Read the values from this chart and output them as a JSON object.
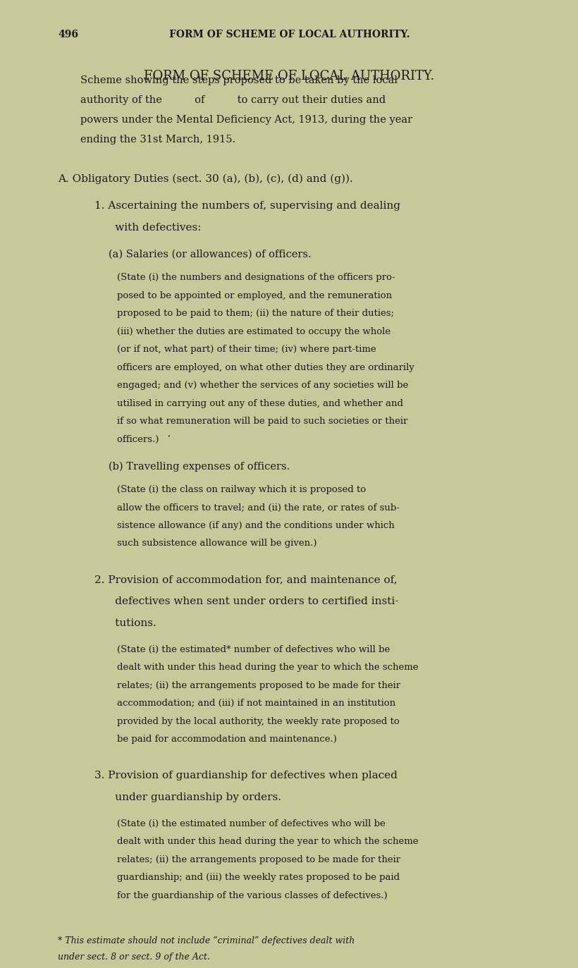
{
  "bg_color": "#c8c89a",
  "text_color": "#1a1a1a",
  "page_number": "496",
  "header": "FORM OF SCHEME OF LOCAL AUTHORITY.",
  "title": "FORM OF SCHEME OF LOCAL AUTHORITY.",
  "intro": "Scheme showing the steps proposed to be taken by the local\nauthority of the          of          to carry out their duties and\npowers under the Mental Deficiency Act, 1913, during the year\nending the 31st March, 1915.",
  "section_A": "A. Obligatory Duties (sect. 30 (a), (b), (c), (d) and (g)).",
  "item_1_heading": "1. Ascertaining the numbers of, supervising and dealing\n      with defectives:",
  "item_1a_heading": "(a) Salaries (or allowances) of officers.",
  "item_1a_body": "(State (i) the numbers and designations of the officers pro-\nposed to be appointed or employed, and the remuneration\nproposed to be paid to them; (ii) the nature of their duties;\n(iii) whether the duties are estimated to occupy the whole\n(or if not, what part) of their time; (iv) where part-time\nofficers are employed, on what other duties they are ordinarily\nengaged; and (v) whether the services of any societies will be\nutilised in carrying out any of these duties, and whether and\nif so what remuneration will be paid to such societies or their\nofficers.)   ʹ",
  "item_1b_heading": "(b) Travelling expenses of officers.",
  "item_1b_body": "(State (i) the class on railway which it is proposed to\nallow the officers to travel; and (ii) the rate, or rates of sub-\nsistence allowance (if any) and the conditions under which\nsuch subsistence allowance will be given.)",
  "item_2_heading": "2. Provision of accommodation for, and maintenance of,\n      defectives when sent under orders to certified insti-\n      tutions.",
  "item_2_body": "(State (i) the estimated* number of defectives who will be\ndealt with under this head during the year to which the scheme\nrelates; (ii) the arrangements proposed to be made for their\naccommodation; and (iii) if not maintained in an institution\nprovided by the local authority, the weekly rate proposed to\nbe paid for accommodation and maintenance.)",
  "item_3_heading": "3. Provision of guardianship for defectives when placed\n      under guardianship by orders.",
  "item_3_body": "(State (i) the estimated number of defectives who will be\ndealt with under this head during the year to which the scheme\nrelates; (ii) the arrangements proposed to be made for their\nguardianship; and (iii) the weekly rates proposed to be paid\nfor the guardianship of the various classes of defectives.)",
  "footnote_line": true,
  "footnote": "* This estimate should not include “criminal” defectives dealt with\nunder sect. 8 or sect. 9 of the Act."
}
